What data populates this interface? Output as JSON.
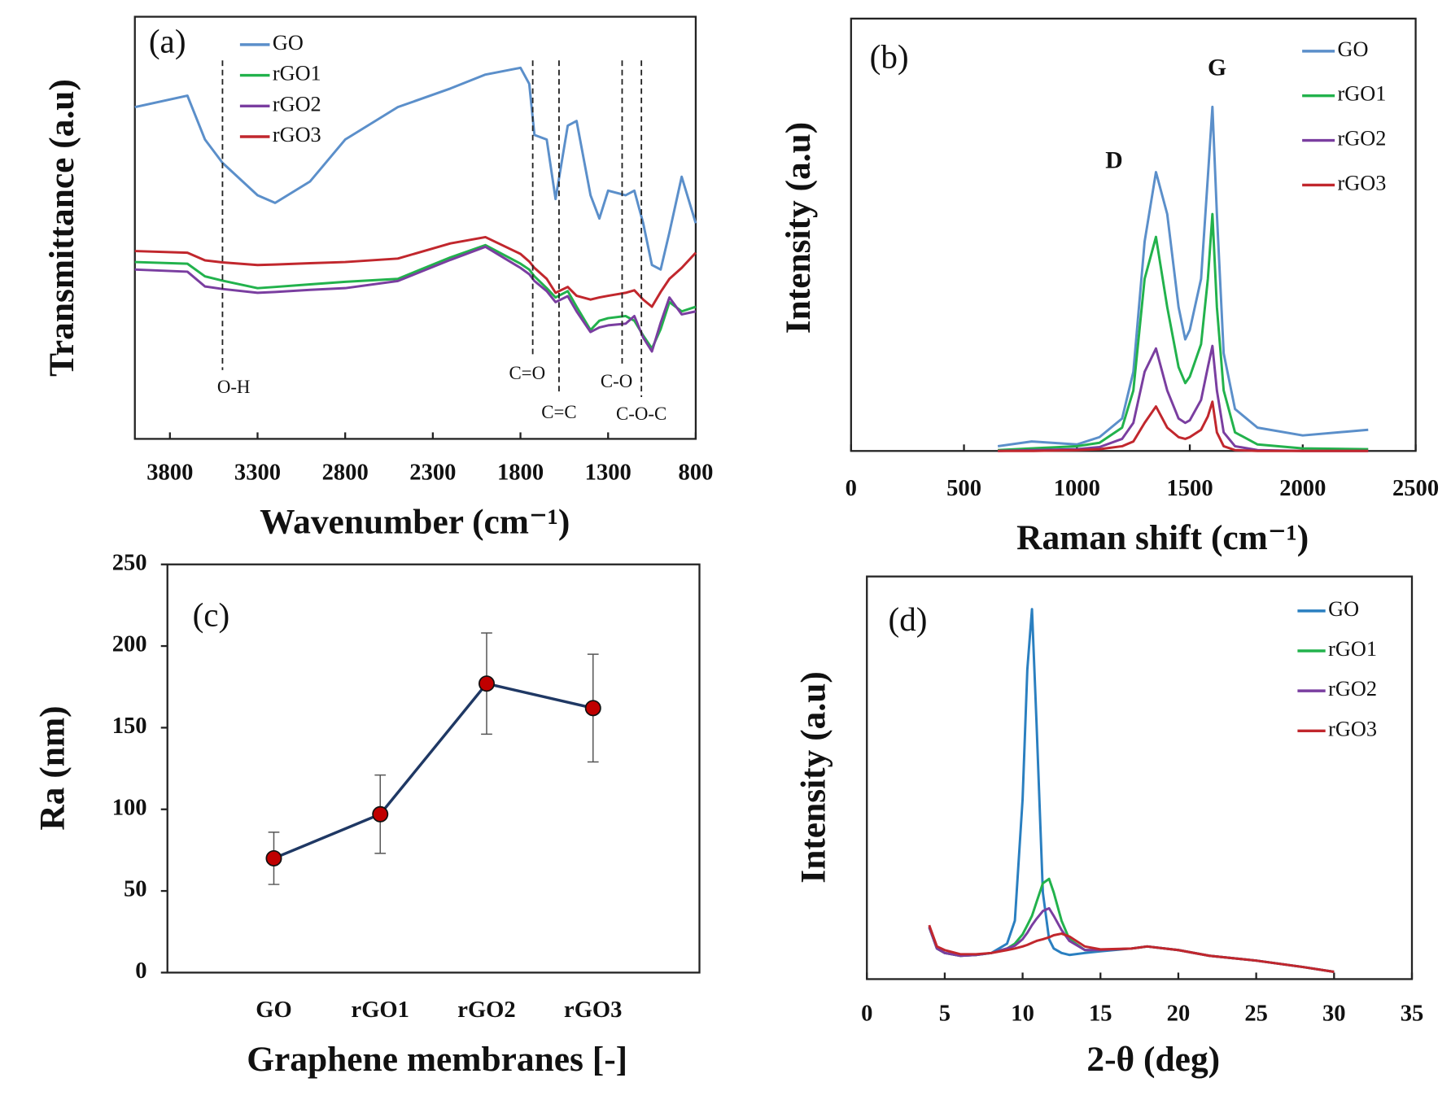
{
  "chart_data": [
    {
      "type": "line",
      "panel_label": "(a)",
      "x_label": "Wavenumber (cm⁻¹)",
      "y_label": "Transmittance (a.u)",
      "xlim": [
        4000,
        800
      ],
      "xticks": [
        3800,
        3300,
        2800,
        2300,
        1800,
        1300,
        800
      ],
      "ylim": [
        0,
        100
      ],
      "x": [
        4000,
        3700,
        3600,
        3500,
        3300,
        3200,
        3000,
        2800,
        2500,
        2200,
        2000,
        1800,
        1750,
        1720,
        1650,
        1600,
        1530,
        1480,
        1400,
        1350,
        1300,
        1200,
        1150,
        1100,
        1050,
        1000,
        950,
        880,
        800
      ],
      "series": [
        {
          "name": "GO",
          "color": "#5b8fca",
          "values": [
            78.6,
            81.3,
            70.9,
            65.4,
            57.7,
            55.9,
            61.0,
            70.9,
            78.6,
            83.0,
            86.3,
            87.9,
            84.1,
            72.0,
            70.9,
            56.8,
            74.2,
            75.3,
            57.7,
            52.2,
            58.8,
            57.7,
            58.8,
            51.1,
            41.2,
            40.1,
            48.9,
            62.1,
            51.1
          ]
        },
        {
          "name": "rGO1",
          "color": "#22b24c",
          "values": [
            41.9,
            41.5,
            38.5,
            37.5,
            35.7,
            36.0,
            36.6,
            37.2,
            37.9,
            43.0,
            45.9,
            41.5,
            40.1,
            38.5,
            35.7,
            33.5,
            35.0,
            31.3,
            25.8,
            28.0,
            28.6,
            29.1,
            28.0,
            24.5,
            21.4,
            26.0,
            32.4,
            30.2,
            31.3
          ]
        },
        {
          "name": "rGO2",
          "color": "#7a3ea0",
          "values": [
            40.1,
            39.6,
            36.1,
            35.5,
            34.6,
            34.8,
            35.3,
            35.7,
            37.4,
            42.4,
            45.5,
            40.5,
            39.0,
            37.4,
            35.0,
            32.4,
            33.8,
            30.2,
            25.3,
            26.4,
            26.9,
            27.3,
            29.1,
            24.0,
            20.7,
            27.5,
            33.5,
            29.5,
            30.2
          ]
        },
        {
          "name": "rGO3",
          "color": "#c1272d",
          "values": [
            44.5,
            44.1,
            42.3,
            41.8,
            41.2,
            41.3,
            41.6,
            41.9,
            42.7,
            46.3,
            47.8,
            43.8,
            42.0,
            40.5,
            37.9,
            34.6,
            36.0,
            33.9,
            33.0,
            33.5,
            33.9,
            34.6,
            35.2,
            33.0,
            31.3,
            34.8,
            37.9,
            40.5,
            44.1
          ]
        }
      ],
      "annotations": [
        {
          "text": "O-H",
          "x": 3500
        },
        {
          "text": "C=O",
          "x": 1730
        },
        {
          "text": "C=C",
          "x": 1580
        },
        {
          "text": "C-O",
          "x": 1220
        },
        {
          "text": "C-O-C",
          "x": 1110
        }
      ]
    },
    {
      "type": "line",
      "panel_label": "(b)",
      "x_label": "Raman shift (cm⁻¹)",
      "y_label": "Intensity (a.u)",
      "xlim": [
        0,
        2500
      ],
      "xticks": [
        0,
        500,
        1000,
        1500,
        2000,
        2500
      ],
      "ylim": [
        0,
        100
      ],
      "x": [
        650,
        800,
        1000,
        1100,
        1200,
        1250,
        1300,
        1350,
        1400,
        1450,
        1480,
        1500,
        1550,
        1580,
        1600,
        1620,
        1650,
        1700,
        1800,
        2000,
        2290
      ],
      "series": [
        {
          "name": "GO",
          "color": "#5b8fca",
          "values": [
            1.1,
            2.2,
            1.5,
            3.2,
            7.5,
            18.3,
            48.4,
            64.5,
            54.8,
            33.3,
            25.8,
            28.0,
            39.8,
            63.4,
            79.6,
            54.8,
            22.6,
            9.7,
            5.4,
            3.6,
            4.9
          ]
        },
        {
          "name": "rGO1",
          "color": "#22b24c",
          "values": [
            0.2,
            0.6,
            1.1,
            1.9,
            5.4,
            14.0,
            39.8,
            49.5,
            33.3,
            19.4,
            15.7,
            17.2,
            24.7,
            39.8,
            54.8,
            33.3,
            14.0,
            4.3,
            1.5,
            0.6,
            0.4
          ]
        },
        {
          "name": "rGO2",
          "color": "#7a3ea0",
          "values": [
            0,
            0.2,
            0.4,
            0.9,
            2.8,
            6.5,
            18.3,
            23.7,
            14.0,
            7.5,
            6.5,
            7.1,
            11.8,
            19.4,
            24.3,
            14.0,
            4.3,
            1.1,
            0.2,
            0,
            0
          ]
        },
        {
          "name": "rGO3",
          "color": "#c1272d",
          "values": [
            0,
            0,
            0.2,
            0.4,
            1.1,
            2.2,
            6.5,
            10.3,
            5.4,
            3.2,
            2.8,
            3.2,
            4.9,
            8.0,
            11.4,
            4.3,
            1.1,
            0.2,
            0,
            0,
            0
          ]
        }
      ],
      "annotations": [
        {
          "text": "D",
          "x": 1350,
          "y": 66.7
        },
        {
          "text": "G",
          "x": 1600,
          "y": 88.2
        }
      ]
    },
    {
      "type": "line",
      "panel_label": "(c)",
      "x_label": "Graphene membranes [-]",
      "y_label": "Ra (nm)",
      "categories": [
        "GO",
        "rGO1",
        "rGO2",
        "rGO3"
      ],
      "values": [
        70,
        97,
        177,
        162
      ],
      "errors": [
        16,
        24,
        31,
        33
      ],
      "color": "#1f3864",
      "marker_color": "#c00000",
      "ylim": [
        0,
        250
      ],
      "yticks": [
        0,
        50,
        100,
        150,
        200,
        250
      ]
    },
    {
      "type": "line",
      "panel_label": "(d)",
      "x_label": "2-θ (deg)",
      "y_label": "Intensity (a.u)",
      "xlim": [
        0,
        35
      ],
      "xticks": [
        0,
        5,
        10,
        15,
        20,
        25,
        30,
        35
      ],
      "ylim": [
        0,
        100
      ],
      "x": [
        4,
        4.5,
        5,
        6,
        7,
        8,
        9,
        9.5,
        10,
        10.3,
        10.6,
        10.9,
        11.3,
        11.7,
        12,
        12.5,
        13,
        14,
        15,
        17,
        18,
        20,
        22,
        25,
        28,
        30
      ],
      "series": [
        {
          "name": "GO",
          "color": "#2a7fc0",
          "values": [
            12.9,
            7.6,
            6.5,
            5.8,
            6.0,
            6.5,
            8.8,
            14.5,
            44.6,
            76.9,
            91.9,
            63.0,
            21.5,
            9.9,
            7.6,
            6.5,
            6.0,
            6.5,
            6.9,
            7.6,
            8.1,
            7.2,
            5.8,
            4.6,
            3.0,
            1.8
          ]
        },
        {
          "name": "rGO1",
          "color": "#22b24c",
          "values": [
            12.9,
            7.6,
            6.5,
            5.8,
            6.0,
            6.5,
            7.6,
            8.8,
            11.1,
            13.4,
            15.7,
            19.2,
            23.8,
            24.9,
            21.5,
            14.5,
            9.9,
            7.2,
            7.2,
            7.6,
            8.1,
            7.2,
            5.8,
            4.6,
            3.0,
            1.8
          ]
        },
        {
          "name": "rGO2",
          "color": "#7a3ea0",
          "values": [
            12.9,
            7.6,
            6.5,
            5.8,
            6.0,
            6.5,
            7.6,
            8.3,
            9.9,
            11.5,
            13.4,
            15.0,
            16.9,
            17.6,
            15.7,
            12.2,
            9.5,
            7.2,
            7.2,
            7.6,
            8.1,
            7.2,
            5.8,
            4.6,
            3.0,
            1.8
          ]
        },
        {
          "name": "rGO3",
          "color": "#c1272d",
          "values": [
            13.4,
            8.1,
            7.2,
            6.2,
            6.2,
            6.5,
            7.2,
            7.6,
            8.1,
            8.5,
            9.0,
            9.5,
            9.9,
            10.4,
            10.9,
            11.3,
            10.6,
            8.1,
            7.4,
            7.6,
            8.1,
            7.2,
            5.8,
            4.6,
            3.0,
            1.8
          ]
        }
      ]
    }
  ]
}
